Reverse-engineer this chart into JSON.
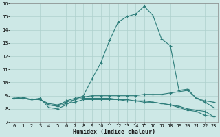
{
  "xlabel": "Humidex (Indice chaleur)",
  "bg_color": "#cde8e6",
  "grid_color": "#aed0cd",
  "line_color": "#2d7d7a",
  "xlim": [
    -0.5,
    23.5
  ],
  "ylim": [
    7,
    16
  ],
  "xticks": [
    0,
    1,
    2,
    3,
    4,
    5,
    6,
    7,
    8,
    9,
    10,
    11,
    12,
    13,
    14,
    15,
    16,
    17,
    18,
    19,
    20,
    21,
    22,
    23
  ],
  "yticks": [
    7,
    8,
    9,
    10,
    11,
    12,
    13,
    14,
    15,
    16
  ],
  "line1_x": [
    0,
    1,
    2,
    3,
    4,
    5,
    6,
    7,
    8,
    9,
    10,
    11,
    12,
    13,
    14,
    15,
    16,
    17,
    18,
    19,
    20,
    21,
    22,
    23
  ],
  "line1_y": [
    8.8,
    8.9,
    8.7,
    8.8,
    8.1,
    8.0,
    8.3,
    8.7,
    9.0,
    10.3,
    11.5,
    13.2,
    14.6,
    15.0,
    15.2,
    15.8,
    15.1,
    13.3,
    12.8,
    9.4,
    9.5,
    8.8,
    8.5,
    8.1
  ],
  "line2_x": [
    0,
    1,
    2,
    3,
    4,
    5,
    6,
    7,
    8,
    9,
    10,
    11,
    12,
    13,
    14,
    15,
    16,
    17,
    18,
    19,
    20,
    21,
    22,
    23
  ],
  "line2_y": [
    8.8,
    8.8,
    8.7,
    8.7,
    8.3,
    8.2,
    8.6,
    8.8,
    8.9,
    9.0,
    9.0,
    9.0,
    9.0,
    9.0,
    9.0,
    9.1,
    9.1,
    9.1,
    9.2,
    9.3,
    9.4,
    8.8,
    8.6,
    8.5
  ],
  "line3_x": [
    0,
    1,
    2,
    3,
    4,
    5,
    6,
    7,
    8,
    9,
    10,
    11,
    12,
    13,
    14,
    15,
    16,
    17,
    18,
    19,
    20,
    21,
    22,
    23
  ],
  "line3_y": [
    8.8,
    8.8,
    8.7,
    8.7,
    8.4,
    8.3,
    8.5,
    8.7,
    8.8,
    8.8,
    8.8,
    8.8,
    8.7,
    8.7,
    8.6,
    8.6,
    8.5,
    8.4,
    8.3,
    8.1,
    7.9,
    7.8,
    7.5,
    7.4
  ],
  "line4_x": [
    0,
    1,
    2,
    3,
    4,
    5,
    6,
    7,
    8,
    9,
    10,
    11,
    12,
    13,
    14,
    15,
    16,
    17,
    18,
    19,
    20,
    21,
    22,
    23
  ],
  "line4_y": [
    8.8,
    8.8,
    8.7,
    8.7,
    8.3,
    8.2,
    8.4,
    8.5,
    8.7,
    8.7,
    8.7,
    8.7,
    8.7,
    8.6,
    8.6,
    8.5,
    8.5,
    8.4,
    8.3,
    8.2,
    8.0,
    7.9,
    7.8,
    7.4
  ],
  "tick_fontsize": 5,
  "xlabel_fontsize": 6,
  "marker_size": 2.5,
  "linewidth": 0.8
}
